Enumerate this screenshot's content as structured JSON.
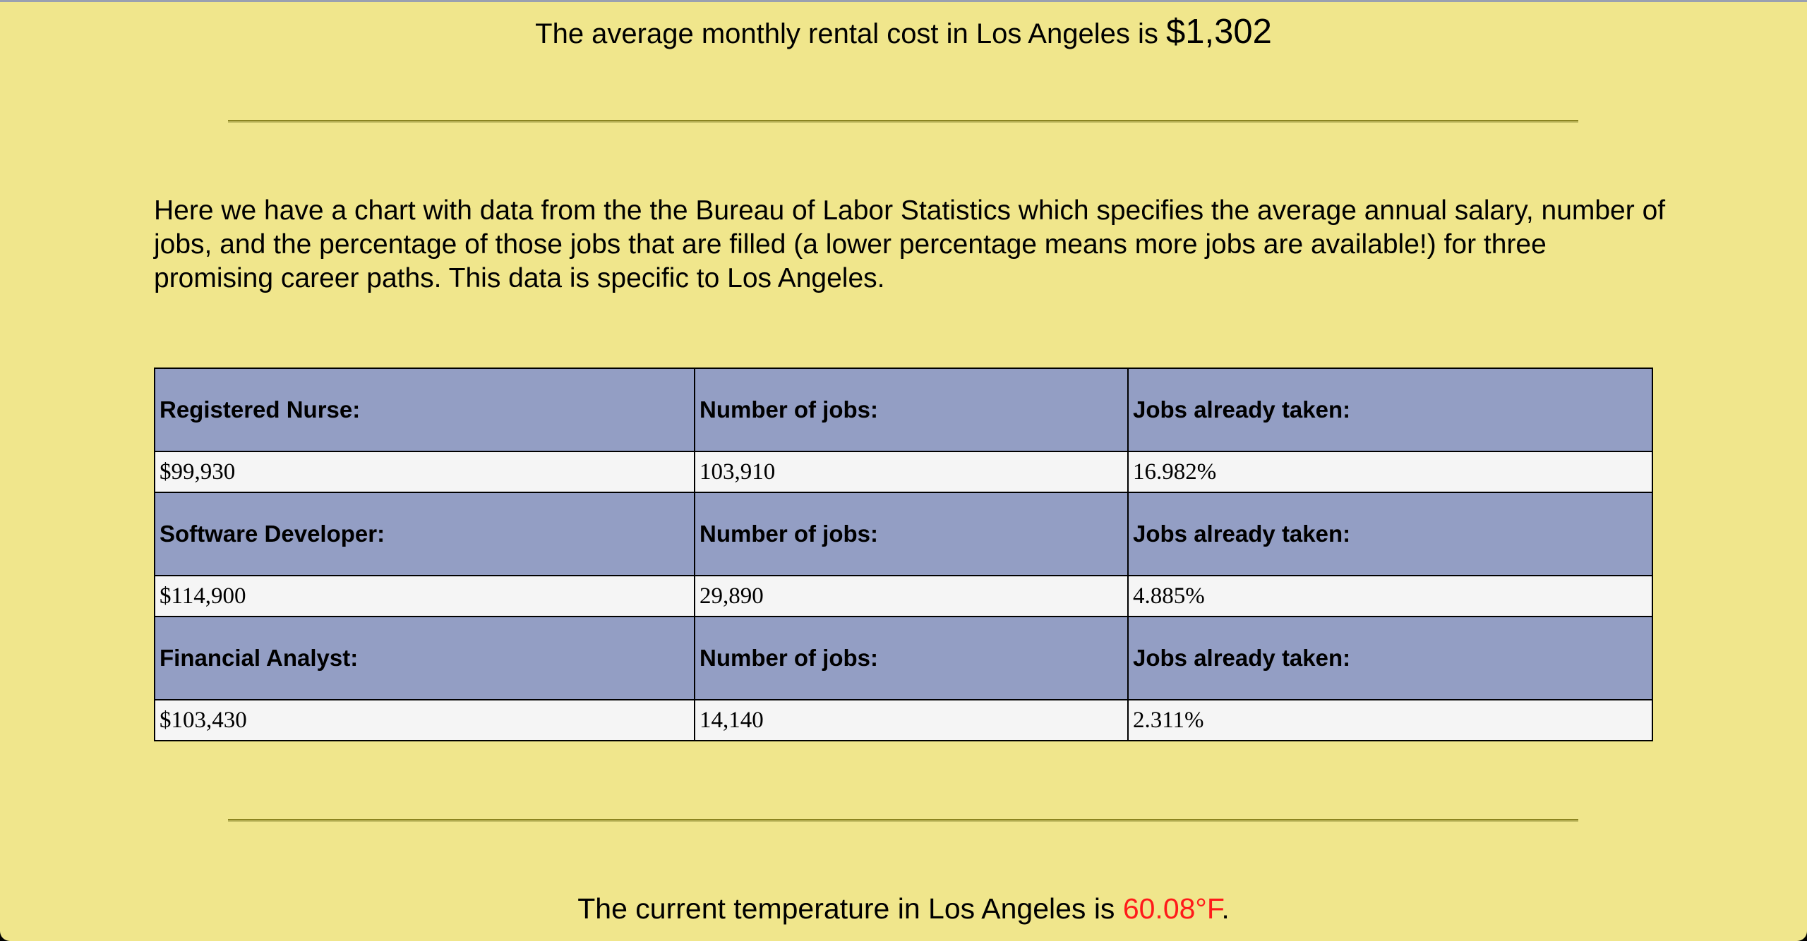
{
  "rent": {
    "text": "The average monthly rental cost in Los Angeles is ",
    "amount": "$1,302"
  },
  "intro": "Here we have a chart with data from the the Bureau of Labor Statistics which specifies the average annual salary, number of jobs, and the percentage of those jobs that are filled (a lower percentage means more jobs are available!) for three promising career paths. This data is specific to Los Angeles.",
  "careers": [
    {
      "title": "Registered Nurse:",
      "jobs_header": "Number of jobs:",
      "taken_header": "Jobs already taken:",
      "salary": "$99,930",
      "jobs": "103,910",
      "taken": "16.982%"
    },
    {
      "title": "Software Developer:",
      "jobs_header": "Number of jobs:",
      "taken_header": "Jobs already taken:",
      "salary": "$114,900",
      "jobs": "29,890",
      "taken": "4.885%"
    },
    {
      "title": "Financial Analyst:",
      "jobs_header": "Number of jobs:",
      "taken_header": "Jobs already taken:",
      "salary": "$103,430",
      "jobs": "14,140",
      "taken": "2.311%"
    }
  ],
  "temperature": {
    "text": "The current temperature in Los Angeles is ",
    "value": "60.08°F",
    "suffix": ".",
    "value_color": "#ff1a1a"
  },
  "colors": {
    "page_background": "#f0e68c",
    "table_header": "#939ec4",
    "table_cell": "#f5f5f5"
  }
}
